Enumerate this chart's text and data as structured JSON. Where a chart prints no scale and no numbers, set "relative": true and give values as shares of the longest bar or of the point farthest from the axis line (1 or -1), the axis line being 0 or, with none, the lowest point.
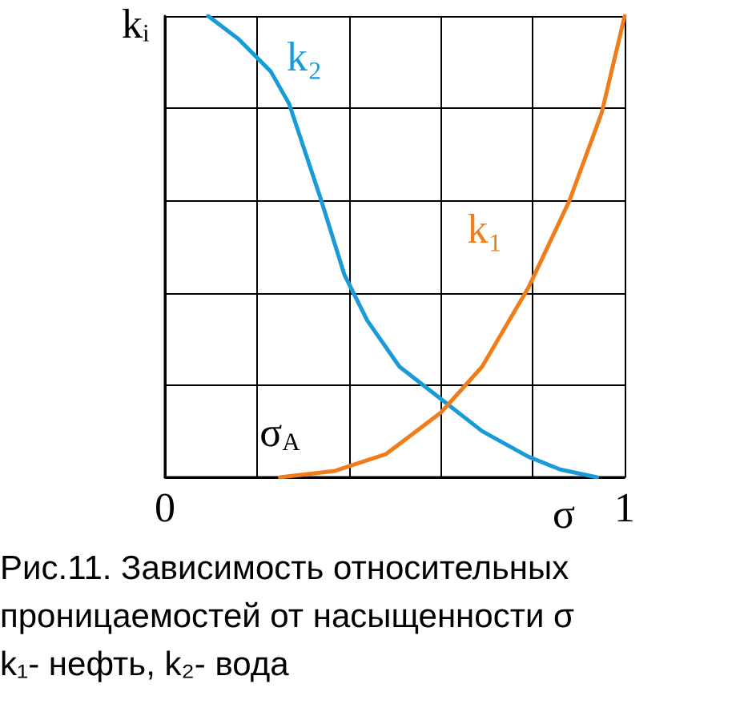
{
  "chart_data": {
    "type": "line",
    "relative": true,
    "xlabel": "σ",
    "ylabel": "kᵢ",
    "xlim": [
      0,
      1
    ],
    "xticks": [
      0,
      {
        "value": 0.2,
        "label": null
      },
      {
        "value": 0.4,
        "label": null
      },
      {
        "value": 0.6,
        "label": null
      },
      {
        "value": 0.8,
        "label": null
      },
      1
    ],
    "grid": true,
    "marker": "none",
    "line_style": "solid",
    "legend": false,
    "series": [
      {
        "name": "k₂",
        "color": "#1a9ad6",
        "x": [
          0.094,
          0.16,
          0.23,
          0.27,
          0.3,
          0.34,
          0.39,
          0.44,
          0.51,
          0.6,
          0.69,
          0.79,
          0.86,
          0.94
        ],
        "values": [
          1,
          0.95,
          0.88,
          0.81,
          0.72,
          0.6,
          0.44,
          0.34,
          0.24,
          0.17,
          0.1,
          0.045,
          0.017,
          0
        ]
      },
      {
        "name": "k₁",
        "color": "#f07d1a",
        "x": [
          0.25,
          0.37,
          0.48,
          0.6,
          0.69,
          0.79,
          0.88,
          0.95,
          1
        ],
        "values": [
          0,
          0.014,
          0.05,
          0.14,
          0.24,
          0.41,
          0.6,
          0.79,
          1
        ]
      }
    ],
    "annotations": [
      {
        "text": "σ$_{A}$",
        "x": 0.25,
        "y": 0
      },
      "Рис.11. Зависимость относительных проницаемостей от насыщенности σ",
      "k₁- нефть, k₂- вода"
    ]
  }
}
